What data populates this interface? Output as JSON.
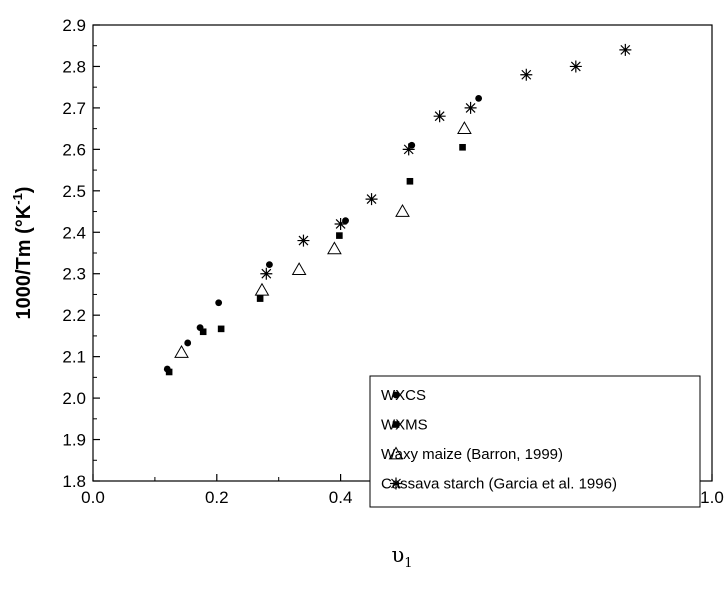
{
  "chart_data": {
    "type": "scatter",
    "xlabel": "υ",
    "xlabel_sub": "1",
    "ylabel": "1000/Tm (°K",
    "ylabel_sup": "-1",
    "ylabel_close": ")",
    "xlim": [
      0.0,
      1.0
    ],
    "ylim": [
      1.8,
      2.9
    ],
    "xticks": [
      0.0,
      0.2,
      0.4,
      0.6,
      0.8,
      1.0
    ],
    "yticks": [
      1.8,
      1.9,
      2.0,
      2.1,
      2.2,
      2.3,
      2.4,
      2.5,
      2.6,
      2.7,
      2.8,
      2.9
    ],
    "xtick_labels": [
      "0.0",
      "0.2",
      "0.4",
      "0.6",
      "0.8",
      "1.0"
    ],
    "ytick_labels": [
      "1.8",
      "1.9",
      "2.0",
      "2.1",
      "2.2",
      "2.3",
      "2.4",
      "2.5",
      "2.6",
      "2.7",
      "2.8",
      "2.9"
    ],
    "grid": false,
    "legend_position": "bottom-right",
    "series": [
      {
        "name": "WXCS",
        "marker": "circle",
        "x": [
          0.12,
          0.153,
          0.173,
          0.203,
          0.285,
          0.408,
          0.515,
          0.623
        ],
        "y": [
          2.07,
          2.133,
          2.17,
          2.23,
          2.322,
          2.428,
          2.61,
          2.723
        ]
      },
      {
        "name": "WXMS",
        "marker": "square",
        "x": [
          0.123,
          0.178,
          0.207,
          0.27,
          0.398,
          0.512,
          0.597
        ],
        "y": [
          2.063,
          2.16,
          2.167,
          2.24,
          2.392,
          2.523,
          2.605
        ]
      },
      {
        "name": "Waxy maize (Barron, 1999)",
        "marker": "triangle",
        "x": [
          0.143,
          0.273,
          0.333,
          0.39,
          0.5,
          0.6
        ],
        "y": [
          2.11,
          2.26,
          2.31,
          2.36,
          2.45,
          2.65
        ]
      },
      {
        "name": "Cassava starch (Garcia et al. 1996)",
        "marker": "asterisk",
        "x": [
          0.28,
          0.34,
          0.4,
          0.45,
          0.51,
          0.56,
          0.61,
          0.7,
          0.78,
          0.86
        ],
        "y": [
          2.3,
          2.38,
          2.42,
          2.48,
          2.6,
          2.68,
          2.7,
          2.78,
          2.8,
          2.84
        ]
      }
    ]
  }
}
